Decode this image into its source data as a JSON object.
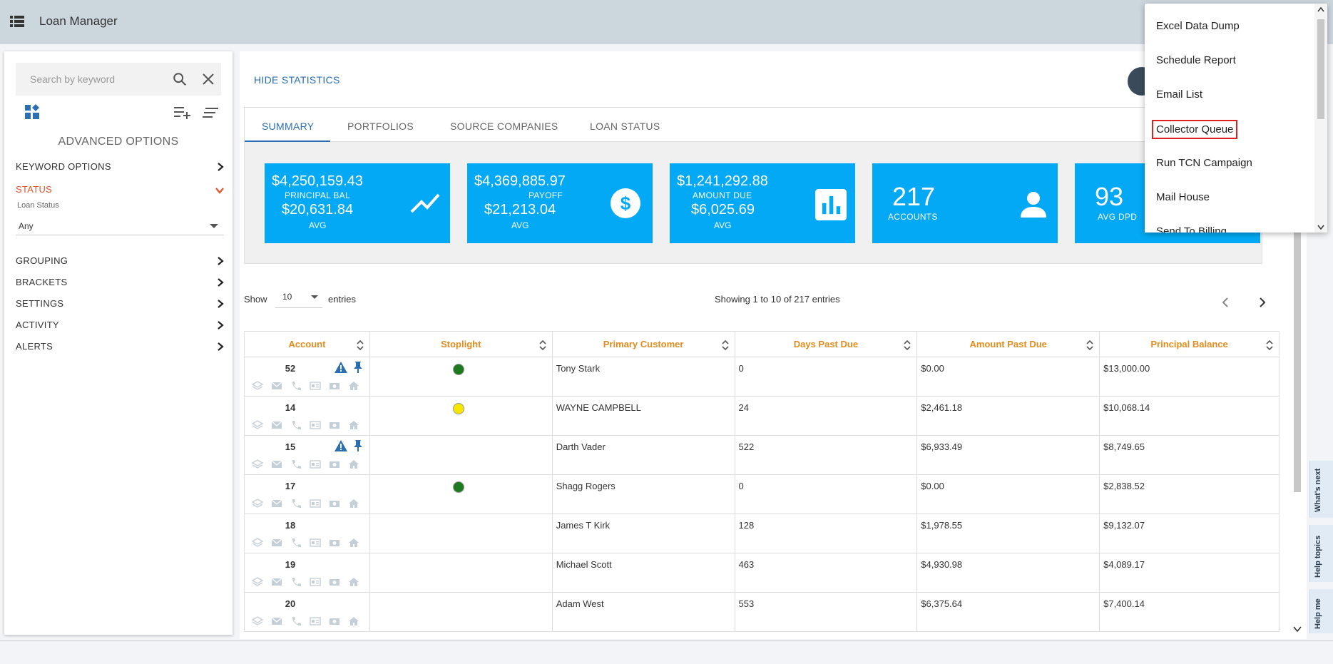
{
  "header": {
    "title": "Loan Manager"
  },
  "sidebar": {
    "search_placeholder": "Search by keyword",
    "advanced_title": "ADVANCED OPTIONS",
    "items": [
      {
        "label": "KEYWORD OPTIONS"
      },
      {
        "label": "STATUS"
      },
      {
        "label": "GROUPING"
      },
      {
        "label": "BRACKETS"
      },
      {
        "label": "SETTINGS"
      },
      {
        "label": "ACTIVITY"
      },
      {
        "label": "ALERTS"
      }
    ],
    "status_sub_label": "Loan Status",
    "status_value": "Any"
  },
  "main": {
    "hide_statistics": "HIDE STATISTICS",
    "tabs": [
      {
        "label": "SUMMARY"
      },
      {
        "label": "PORTFOLIOS"
      },
      {
        "label": "SOURCE COMPANIES"
      },
      {
        "label": "LOAN STATUS"
      }
    ],
    "cards": [
      {
        "big": "$4,250,159.43",
        "label": "PRINCIPAL BAL",
        "avg_value": "$20,631.84",
        "avg_label": "AVG",
        "icon": "trend-line-icon"
      },
      {
        "big": "$4,369,885.97",
        "label": "PAYOFF",
        "avg_value": "$21,213.04",
        "avg_label": "AVG",
        "icon": "dollar-icon"
      },
      {
        "big": "$1,241,292.88",
        "label": "AMOUNT DUE",
        "avg_value": "$6,025.69",
        "avg_label": "AVG",
        "icon": "bar-chart-icon"
      },
      {
        "big": "217",
        "label": "ACCOUNTS",
        "icon": "person-icon"
      },
      {
        "big": "93",
        "label": "AVG DPD"
      }
    ],
    "show_label": "Show",
    "page_size": "10",
    "entries_label": "entries",
    "showing_text": "Showing 1 to 10 of 217 entries",
    "table": {
      "columns": [
        "Account",
        "Stoplight",
        "Primary Customer",
        "Days Past Due",
        "Amount Past Due",
        "Principal Balance"
      ],
      "rows": [
        {
          "account": "52",
          "alert": true,
          "stoplight": "#1e7a1e",
          "customer": "Tony Stark",
          "dpd": "0",
          "amount_past_due": "$0.00",
          "principal": "$13,000.00"
        },
        {
          "account": "14",
          "alert": false,
          "stoplight": "#f5e600",
          "customer": "WAYNE CAMPBELL",
          "dpd": "24",
          "amount_past_due": "$2,461.18",
          "principal": "$10,068.14"
        },
        {
          "account": "15",
          "alert": true,
          "stoplight": "",
          "customer": "Darth Vader",
          "dpd": "522",
          "amount_past_due": "$6,933.49",
          "principal": "$8,749.65"
        },
        {
          "account": "17",
          "alert": false,
          "stoplight": "#1e7a1e",
          "customer": "Shagg Rogers",
          "dpd": "0",
          "amount_past_due": "$0.00",
          "principal": "$2,838.52"
        },
        {
          "account": "18",
          "alert": false,
          "stoplight": "",
          "customer": "James T Kirk",
          "dpd": "128",
          "amount_past_due": "$1,978.55",
          "principal": "$9,132.07"
        },
        {
          "account": "19",
          "alert": false,
          "stoplight": "",
          "customer": "Michael Scott",
          "dpd": "463",
          "amount_past_due": "$4,930.98",
          "principal": "$4,089.17"
        },
        {
          "account": "20",
          "alert": false,
          "stoplight": "",
          "customer": "Adam West",
          "dpd": "553",
          "amount_past_due": "$6,375.64",
          "principal": "$7,400.14"
        }
      ]
    }
  },
  "dropdown": {
    "items": [
      {
        "label": "Excel Data Dump"
      },
      {
        "label": "Schedule Report"
      },
      {
        "label": "Email List"
      },
      {
        "label": "Collector Queue"
      },
      {
        "label": "Run TCN Campaign"
      },
      {
        "label": "Mail House"
      },
      {
        "label": "Send To Billing"
      }
    ]
  },
  "help_tabs": [
    "What's next",
    "Help topics",
    "Help me"
  ],
  "colors": {
    "accent": "#2a6fb3",
    "card": "#03a9f4",
    "orange": "#e58b1c",
    "active": "#e5532c"
  }
}
